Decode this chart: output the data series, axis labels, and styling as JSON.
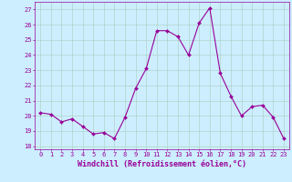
{
  "x": [
    0,
    1,
    2,
    3,
    4,
    5,
    6,
    7,
    8,
    9,
    10,
    11,
    12,
    13,
    14,
    15,
    16,
    17,
    18,
    19,
    20,
    21,
    22,
    23
  ],
  "y": [
    20.2,
    20.1,
    19.6,
    19.8,
    19.3,
    18.8,
    18.9,
    18.5,
    19.9,
    21.8,
    23.1,
    25.6,
    25.6,
    25.2,
    24.0,
    26.1,
    27.1,
    22.8,
    21.3,
    20.0,
    20.6,
    20.7,
    19.9,
    18.5
  ],
  "line_color": "#990099",
  "marker": "D",
  "marker_size": 2.0,
  "bg_color": "#cceeff",
  "grid_color": "#aaccbb",
  "xlabel": "Windchill (Refroidissement éolien,°C)",
  "xlabel_color": "#990099",
  "ylabel_ticks": [
    18,
    19,
    20,
    21,
    22,
    23,
    24,
    25,
    26,
    27
  ],
  "xlim": [
    -0.5,
    23.5
  ],
  "ylim": [
    17.8,
    27.5
  ],
  "xticks": [
    0,
    1,
    2,
    3,
    4,
    5,
    6,
    7,
    8,
    9,
    10,
    11,
    12,
    13,
    14,
    15,
    16,
    17,
    18,
    19,
    20,
    21,
    22,
    23
  ],
  "tick_color": "#990099",
  "tick_fontsize": 5.0,
  "xlabel_fontsize": 6.0,
  "spine_color": "#990099"
}
